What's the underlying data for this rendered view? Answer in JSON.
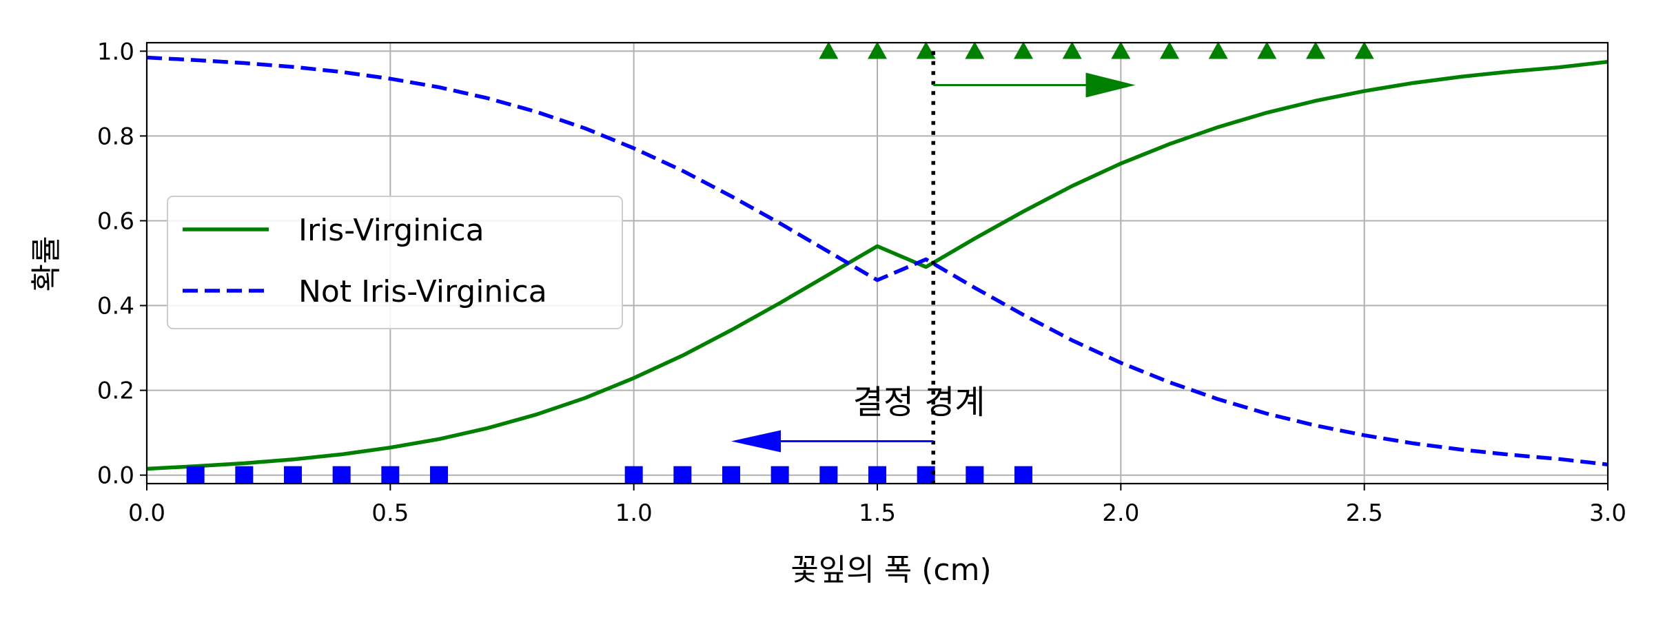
{
  "chart_data": {
    "type": "line",
    "xlabel": "꽃잎의 폭 (cm)",
    "ylabel": "확률",
    "xlim": [
      0,
      3
    ],
    "ylim": [
      -0.02,
      1.02
    ],
    "grid": true,
    "legend_position": "center-left",
    "x_ticks": [
      0,
      0.5,
      1,
      1.5,
      2,
      2.5,
      3
    ],
    "x_tick_labels": [
      "0.0",
      "0.5",
      "1.0",
      "1.5",
      "2.0",
      "2.5",
      "3.0"
    ],
    "y_ticks": [
      0,
      0.2,
      0.4,
      0.6,
      0.8,
      1
    ],
    "y_tick_labels": [
      "0.0",
      "0.2",
      "0.4",
      "0.6",
      "0.8",
      "1.0"
    ],
    "series": [
      {
        "name": "Iris-Virginica",
        "style": "solid",
        "color": "#008000",
        "x": [
          0,
          0.1,
          0.2,
          0.3,
          0.4,
          0.5,
          0.6,
          0.7,
          0.8,
          0.9,
          1.0,
          1.1,
          1.2,
          1.3,
          1.4,
          1.5,
          1.6,
          1.7,
          1.8,
          1.9,
          2.0,
          2.1,
          2.2,
          2.3,
          2.4,
          2.5,
          2.6,
          2.7,
          2.8,
          2.9,
          3.0
        ],
        "y": [
          0.015,
          0.021,
          0.028,
          0.037,
          0.049,
          0.065,
          0.085,
          0.111,
          0.143,
          0.182,
          0.229,
          0.282,
          0.342,
          0.406,
          0.473,
          0.54,
          0.491,
          0.558,
          0.622,
          0.682,
          0.735,
          0.781,
          0.821,
          0.855,
          0.883,
          0.906,
          0.925,
          0.94,
          0.952,
          0.962,
          0.975
        ]
      },
      {
        "name": "Not Iris-Virginica",
        "style": "dashed",
        "color": "#0000ff",
        "x": [
          0,
          0.1,
          0.2,
          0.3,
          0.4,
          0.5,
          0.6,
          0.7,
          0.8,
          0.9,
          1.0,
          1.1,
          1.2,
          1.3,
          1.4,
          1.5,
          1.6,
          1.7,
          1.8,
          1.9,
          2.0,
          2.1,
          2.2,
          2.3,
          2.4,
          2.5,
          2.6,
          2.7,
          2.8,
          2.9,
          3.0
        ],
        "y": [
          0.985,
          0.979,
          0.972,
          0.963,
          0.951,
          0.935,
          0.915,
          0.889,
          0.857,
          0.818,
          0.771,
          0.718,
          0.658,
          0.594,
          0.527,
          0.46,
          0.509,
          0.442,
          0.378,
          0.318,
          0.265,
          0.219,
          0.179,
          0.145,
          0.117,
          0.094,
          0.075,
          0.06,
          0.048,
          0.038,
          0.025
        ]
      }
    ],
    "markers": [
      {
        "name": "Iris-Virginica samples",
        "shape": "triangle",
        "color": "#008000",
        "x": [
          1.4,
          1.5,
          1.6,
          1.7,
          1.8,
          1.9,
          2.0,
          2.1,
          2.2,
          2.3,
          2.4,
          2.5
        ],
        "y": 1
      },
      {
        "name": "Not Iris-Virginica samples",
        "shape": "square",
        "color": "#0000ff",
        "x": [
          0.1,
          0.2,
          0.3,
          0.4,
          0.5,
          0.6,
          1.0,
          1.1,
          1.2,
          1.3,
          1.4,
          1.5,
          1.6,
          1.7,
          1.8
        ],
        "y": 0
      }
    ],
    "decision_boundary": 1.615,
    "annotations": {
      "boundary_text": "결정 경계",
      "boundary_text_at": [
        1.45,
        0.175
      ],
      "arrow_right": {
        "from": [
          1.615,
          0.92
        ],
        "to": [
          2.03,
          0.92
        ],
        "color": "#008000"
      },
      "arrow_left": {
        "from": [
          1.615,
          0.08
        ],
        "to": [
          1.2,
          0.08
        ],
        "color": "#0000ff"
      }
    }
  }
}
